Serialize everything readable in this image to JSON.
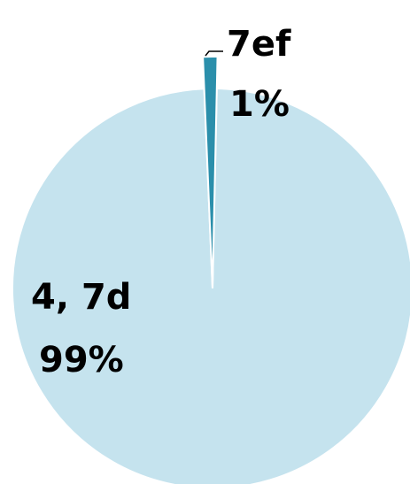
{
  "chart_data": {
    "type": "pie",
    "slices": [
      {
        "name": "4, 7d",
        "value": 99,
        "label_name": "4, 7d",
        "label_pct": "99%",
        "color": "#c5e3ee"
      },
      {
        "name": "7ef",
        "value": 1,
        "label_name": "7ef",
        "label_pct": "1%",
        "color": "#2b8fab"
      }
    ],
    "legend": "none",
    "start_angle_deg": 1,
    "slice_separator_color": "#ffffff"
  }
}
